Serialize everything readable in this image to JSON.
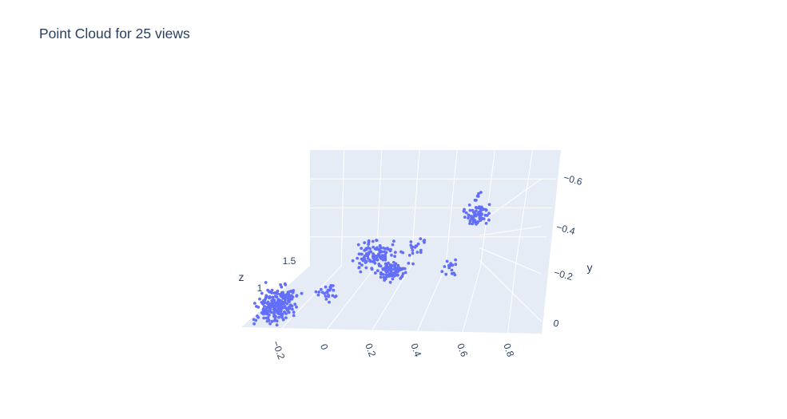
{
  "chart_data": {
    "type": "scatter3d",
    "title": "Point Cloud for 25 views",
    "axes": {
      "x": {
        "label": "",
        "tick_labels": [
          "−0.2",
          "0",
          "0.2",
          "0.4",
          "0.6",
          "0.8"
        ],
        "ticks": [
          -0.2,
          0,
          0.2,
          0.4,
          0.6,
          0.8
        ],
        "range": [
          -0.38,
          0.95
        ]
      },
      "y": {
        "label": "y",
        "tick_labels": [
          "0",
          "−0.2",
          "−0.4",
          "−0.6"
        ],
        "ticks": [
          0,
          -0.2,
          -0.4,
          -0.6
        ],
        "range": [
          0.05,
          -0.72
        ]
      },
      "z": {
        "label": "z",
        "tick_labels": [
          "1",
          "1.5"
        ],
        "ticks": [
          1,
          1.5
        ]
      }
    },
    "grid": true,
    "legend": "none",
    "marker_color": "#636efa",
    "background_color": "#e5ecf6",
    "clusters": [
      {
        "x": -0.27,
        "y": -0.08,
        "spread_x": 0.06,
        "spread_y": 0.07,
        "count": 230
      },
      {
        "x": -0.05,
        "y": -0.15,
        "spread_x": 0.04,
        "spread_y": 0.03,
        "count": 25
      },
      {
        "x": 0.1,
        "y": -0.36,
        "spread_x": 0.07,
        "spread_y": 0.06,
        "count": 110
      },
      {
        "x": 0.22,
        "y": -0.28,
        "spread_x": 0.05,
        "spread_y": 0.04,
        "count": 90
      },
      {
        "x": 0.3,
        "y": -0.4,
        "spread_x": 0.05,
        "spread_y": 0.05,
        "count": 20
      },
      {
        "x": 0.5,
        "y": -0.3,
        "spread_x": 0.03,
        "spread_y": 0.03,
        "count": 15
      },
      {
        "x": 0.6,
        "y": -0.58,
        "spread_x": 0.05,
        "spread_y": 0.04,
        "count": 70
      },
      {
        "x": 0.58,
        "y": -0.68,
        "spread_x": 0.02,
        "spread_y": 0.02,
        "count": 6
      }
    ]
  }
}
